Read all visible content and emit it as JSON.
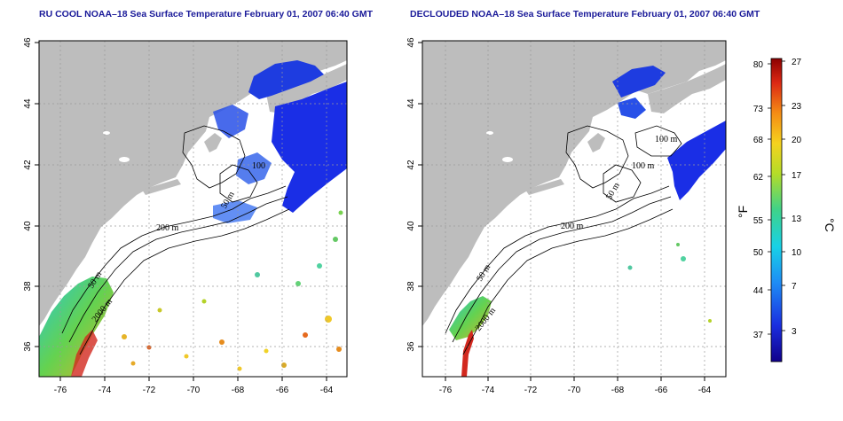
{
  "panels": [
    {
      "id": "left",
      "title": "RU COOL NOAA–18 Sea Surface Temperature February 01, 2007 06:40 GMT",
      "x_ticks": [
        "-76",
        "-74",
        "-72",
        "-70",
        "-68",
        "-66",
        "-64"
      ],
      "y_ticks": [
        "36",
        "38",
        "40",
        "42",
        "44",
        "46"
      ],
      "contour_labels": [
        "200 m",
        "50 m",
        "100",
        "50 m",
        "2000 m"
      ]
    },
    {
      "id": "right",
      "title": "DECLOUDED NOAA–18 Sea Surface Temperature February 01, 2007 06:40 GMT",
      "x_ticks": [
        "-76",
        "-74",
        "-72",
        "-70",
        "-68",
        "-66",
        "-64"
      ],
      "y_ticks": [
        "36",
        "38",
        "40",
        "42",
        "44",
        "46"
      ],
      "contour_labels": [
        "200 m",
        "100 m",
        "100 m",
        "50 m",
        "50 m",
        "2000 m"
      ]
    }
  ],
  "colorbar": {
    "fahrenheit_ticks": [
      "80",
      "73",
      "68",
      "62",
      "55",
      "50",
      "44",
      "37"
    ],
    "celsius_ticks": [
      "27",
      "23",
      "20",
      "17",
      "13",
      "10",
      "7",
      "3"
    ],
    "fahrenheit_unit": "°F",
    "celsius_unit": "°C"
  },
  "colors": {
    "land": "#bdbdbd",
    "title": "#1a1a99",
    "grid": "#9a9a9a"
  }
}
